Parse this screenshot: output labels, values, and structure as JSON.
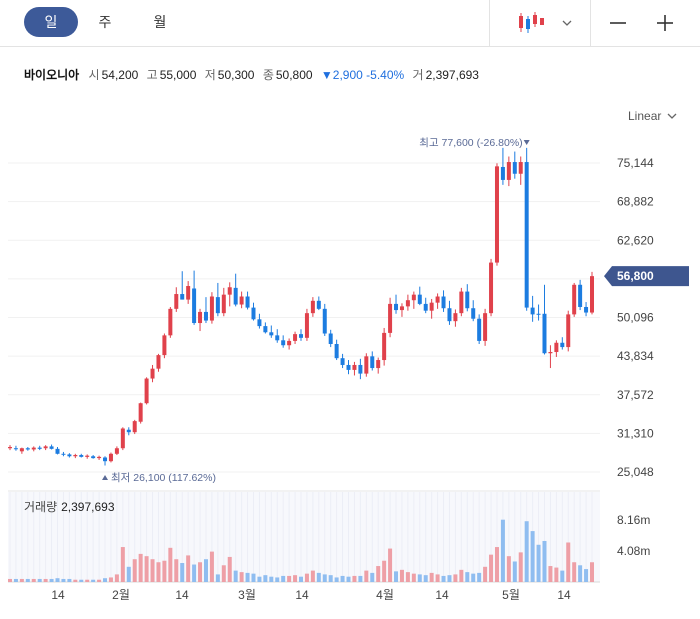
{
  "tabs": [
    {
      "label": "일",
      "active": true
    },
    {
      "label": "주",
      "active": false
    },
    {
      "label": "월",
      "active": false
    }
  ],
  "stock": {
    "name": "바이오니아",
    "open_label": "시",
    "open": "54,200",
    "high_label": "고",
    "high": "55,000",
    "low_label": "저",
    "low": "50,300",
    "close_label": "종",
    "close": "50,800",
    "change": "▼2,900 -5.40%",
    "volume_label": "거",
    "volume": "2,397,693"
  },
  "scale_toggle": "Linear",
  "volume_panel": {
    "label": "거래량",
    "value": "2,397,693"
  },
  "colors": {
    "up": "#e0414b",
    "down": "#1c7ce0",
    "accent": "#3d5a99",
    "current_tag": "#3e568f"
  },
  "chart_data": {
    "type": "candlestick",
    "price_axis": {
      "ticks": [
        75144,
        68882,
        62620,
        56358,
        50096,
        43834,
        37572,
        31310,
        25048
      ],
      "tick_labels": [
        "75,144",
        "68,882",
        "62,620",
        "",
        "50,096",
        "43,834",
        "37,572",
        "31,310",
        "25,048"
      ]
    },
    "volume_axis": {
      "ticks": [
        8160000,
        4080000
      ],
      "tick_labels": [
        "8.16m",
        "4.08m"
      ]
    },
    "x_labels": [
      "14",
      "2월",
      "14",
      "3월",
      "14",
      "4월",
      "14",
      "5월",
      "14"
    ],
    "current_price": "56,800",
    "high_annotation": "최고 77,600 (-26.80%)",
    "low_annotation": "최저 26,100 (117.62%)",
    "candles": [
      [
        29100,
        29400,
        28600,
        28900,
        "u",
        0.4
      ],
      [
        28900,
        29300,
        28500,
        28800,
        "d",
        0.4
      ],
      [
        28400,
        29000,
        28000,
        28900,
        "u",
        0.4
      ],
      [
        28900,
        29100,
        28500,
        28700,
        "d",
        0.4
      ],
      [
        28700,
        29200,
        28400,
        29000,
        "u",
        0.4
      ],
      [
        29000,
        29300,
        28600,
        28800,
        "d",
        0.4
      ],
      [
        28900,
        29400,
        28600,
        29200,
        "u",
        0.4
      ],
      [
        29200,
        29500,
        28700,
        28800,
        "d",
        0.4
      ],
      [
        28800,
        29100,
        27900,
        28000,
        "d",
        0.5
      ],
      [
        28000,
        28300,
        27600,
        27900,
        "d",
        0.4
      ],
      [
        27900,
        28100,
        27400,
        27600,
        "d",
        0.4
      ],
      [
        27600,
        28000,
        27300,
        27800,
        "u",
        0.3
      ],
      [
        27800,
        28000,
        27400,
        27500,
        "d",
        0.3
      ],
      [
        27500,
        27900,
        27200,
        27700,
        "u",
        0.3
      ],
      [
        27600,
        27800,
        27200,
        27300,
        "d",
        0.3
      ],
      [
        27300,
        27700,
        27000,
        27500,
        "u",
        0.3
      ],
      [
        27400,
        27600,
        26100,
        26800,
        "d",
        0.5
      ],
      [
        26800,
        28200,
        26600,
        28000,
        "u",
        0.6
      ],
      [
        28000,
        29200,
        27800,
        28900,
        "u",
        1.0
      ],
      [
        28900,
        32300,
        28600,
        32100,
        "u",
        4.6
      ],
      [
        31900,
        32300,
        31000,
        31500,
        "d",
        2.0
      ],
      [
        31500,
        33500,
        31200,
        33300,
        "u",
        3.0
      ],
      [
        33200,
        36300,
        32900,
        36200,
        "u",
        3.7
      ],
      [
        36200,
        40400,
        36000,
        40200,
        "u",
        3.4
      ],
      [
        40200,
        42400,
        39600,
        41800,
        "u",
        3.0
      ],
      [
        41800,
        44200,
        41300,
        44000,
        "u",
        2.6
      ],
      [
        44000,
        47500,
        43500,
        47200,
        "u",
        2.8
      ],
      [
        47200,
        51800,
        46800,
        51500,
        "u",
        4.5
      ],
      [
        51500,
        55000,
        51000,
        53900,
        "u",
        3.0
      ],
      [
        53900,
        57600,
        53000,
        53000,
        "d",
        2.5
      ],
      [
        53000,
        56000,
        52300,
        55200,
        "u",
        3.5
      ],
      [
        54800,
        57700,
        48900,
        49200,
        "d",
        2.3
      ],
      [
        49200,
        51500,
        47900,
        51000,
        "u",
        2.6
      ],
      [
        51000,
        53400,
        49200,
        49600,
        "d",
        3.0
      ],
      [
        49600,
        54200,
        49100,
        53500,
        "u",
        4.0
      ],
      [
        53400,
        55700,
        50300,
        50800,
        "d",
        1.0
      ],
      [
        50800,
        54900,
        50300,
        53800,
        "u",
        2.2
      ],
      [
        53800,
        55800,
        51900,
        55000,
        "u",
        3.3
      ],
      [
        54900,
        57200,
        51900,
        52200,
        "d",
        1.5
      ],
      [
        52200,
        54300,
        51600,
        53500,
        "u",
        1.3
      ],
      [
        53500,
        54300,
        51400,
        51700,
        "d",
        1.2
      ],
      [
        51700,
        52500,
        49600,
        49800,
        "d",
        1.1
      ],
      [
        49800,
        50700,
        48300,
        48700,
        "d",
        0.7
      ],
      [
        48700,
        49300,
        47500,
        47700,
        "d",
        0.9
      ],
      [
        47700,
        48800,
        46800,
        47200,
        "d",
        0.7
      ],
      [
        47200,
        48200,
        46000,
        46400,
        "d",
        0.6
      ],
      [
        46400,
        47200,
        45200,
        45600,
        "d",
        0.8
      ],
      [
        45600,
        46700,
        44900,
        46300,
        "u",
        0.8
      ],
      [
        46300,
        47800,
        45800,
        47400,
        "u",
        0.9
      ],
      [
        47400,
        48200,
        46300,
        46800,
        "d",
        0.7
      ],
      [
        46800,
        51500,
        46300,
        50800,
        "u",
        1.1
      ],
      [
        50800,
        53400,
        50200,
        52800,
        "u",
        1.5
      ],
      [
        52800,
        53500,
        51300,
        51500,
        "d",
        1.2
      ],
      [
        51500,
        52300,
        47100,
        47500,
        "d",
        1.0
      ],
      [
        47500,
        48100,
        45300,
        45800,
        "d",
        0.9
      ],
      [
        45800,
        46500,
        43200,
        43500,
        "d",
        0.6
      ],
      [
        43500,
        44200,
        41900,
        42400,
        "d",
        0.8
      ],
      [
        42400,
        43200,
        40900,
        41600,
        "d",
        0.7
      ],
      [
        41600,
        42900,
        40700,
        42400,
        "u",
        0.8
      ],
      [
        42400,
        43400,
        40100,
        41000,
        "d",
        0.8
      ],
      [
        41000,
        44300,
        40500,
        43800,
        "u",
        1.5
      ],
      [
        43800,
        44600,
        41500,
        41900,
        "d",
        1.2
      ],
      [
        41900,
        43600,
        41000,
        43200,
        "u",
        2.1
      ],
      [
        43200,
        48400,
        42300,
        47600,
        "u",
        2.8
      ],
      [
        47600,
        53300,
        46900,
        52300,
        "u",
        4.4
      ],
      [
        52300,
        53800,
        50700,
        51300,
        "d",
        1.4
      ],
      [
        51300,
        52400,
        50200,
        51900,
        "u",
        1.6
      ],
      [
        51900,
        53800,
        51200,
        52900,
        "u",
        1.3
      ],
      [
        52900,
        54300,
        51500,
        53800,
        "u",
        1.1
      ],
      [
        53800,
        55100,
        52100,
        52300,
        "d",
        1.0
      ],
      [
        52300,
        53300,
        50800,
        51200,
        "d",
        0.9
      ],
      [
        51200,
        53100,
        49900,
        52500,
        "u",
        1.2
      ],
      [
        52500,
        54000,
        51500,
        53500,
        "u",
        1.0
      ],
      [
        53500,
        54500,
        51000,
        51600,
        "d",
        0.8
      ],
      [
        51600,
        52800,
        48900,
        49500,
        "d",
        0.9
      ],
      [
        49500,
        51400,
        48600,
        50800,
        "u",
        1.0
      ],
      [
        50800,
        54900,
        50300,
        54300,
        "u",
        1.6
      ],
      [
        54300,
        55500,
        51100,
        51600,
        "d",
        1.3
      ],
      [
        51600,
        52900,
        49500,
        49900,
        "d",
        1.1
      ],
      [
        49900,
        50600,
        45800,
        46300,
        "d",
        1.2
      ],
      [
        46300,
        51500,
        45500,
        50800,
        "u",
        2.0
      ],
      [
        50800,
        59600,
        50300,
        59000,
        "u",
        3.6
      ],
      [
        59000,
        75100,
        58500,
        74600,
        "u",
        4.6
      ],
      [
        74500,
        77600,
        71600,
        72400,
        "d",
        8.2
      ],
      [
        72400,
        76200,
        71400,
        75300,
        "u",
        3.4
      ],
      [
        75300,
        77000,
        72600,
        73400,
        "d",
        2.7
      ],
      [
        73400,
        76200,
        71600,
        75300,
        "u",
        3.9
      ],
      [
        75300,
        77600,
        51200,
        51700,
        "d",
        8.0
      ],
      [
        51700,
        53600,
        49400,
        50600,
        "d",
        6.7
      ],
      [
        50600,
        52200,
        49600,
        50700,
        "d",
        4.9
      ],
      [
        50700,
        55400,
        44100,
        44300,
        "d",
        5.4
      ],
      [
        44300,
        45600,
        41900,
        44500,
        "u",
        2.1
      ],
      [
        44500,
        46400,
        43700,
        46000,
        "u",
        1.9
      ],
      [
        46000,
        46900,
        44900,
        45300,
        "d",
        1.5
      ],
      [
        45300,
        51200,
        44600,
        50600,
        "u",
        5.2
      ],
      [
        50600,
        55700,
        50200,
        55400,
        "u",
        2.6
      ],
      [
        55400,
        56200,
        51300,
        51800,
        "d",
        2.2
      ],
      [
        51800,
        52600,
        50300,
        50900,
        "d",
        1.7
      ],
      [
        50900,
        57500,
        50600,
        56800,
        "u",
        2.6
      ]
    ]
  }
}
